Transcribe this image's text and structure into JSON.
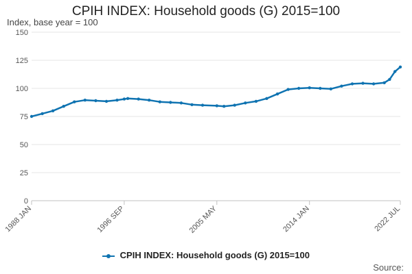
{
  "page": {
    "title": "CPIH INDEX: Household goods (G) 2015=100",
    "source_label": "Source:"
  },
  "colors": {
    "series": "#0f73b1",
    "grid": "#e6e6e6",
    "axis": "#c0c0c0"
  },
  "chart_data": {
    "type": "line",
    "title": "CPIH INDEX: Household goods (G) 2015=100",
    "ylabel": "Index, base year = 100",
    "xlabel": "",
    "ylim": [
      0,
      150
    ],
    "yticks": [
      0,
      25,
      50,
      75,
      100,
      125,
      150
    ],
    "xticks": [
      "1988 JAN",
      "1996 SEP",
      "2005 MAY",
      "2014 JAN",
      "2022 JUL"
    ],
    "grid": true,
    "legend_position": "bottom",
    "series": [
      {
        "name": "CPIH INDEX: Household goods (G) 2015=100",
        "x": [
          "1988 JAN",
          "1989 JAN",
          "1990 JAN",
          "1991 JAN",
          "1992 JAN",
          "1993 JAN",
          "1994 JAN",
          "1995 JAN",
          "1996 JAN",
          "1996 SEP",
          "1997 JAN",
          "1998 JAN",
          "1999 JAN",
          "2000 JAN",
          "2001 JAN",
          "2002 JAN",
          "2003 JAN",
          "2004 JAN",
          "2005 MAY",
          "2006 JAN",
          "2007 JAN",
          "2008 JAN",
          "2009 JAN",
          "2010 JAN",
          "2011 JAN",
          "2012 JAN",
          "2013 JAN",
          "2014 JAN",
          "2015 JAN",
          "2016 JAN",
          "2017 JAN",
          "2018 JAN",
          "2019 JAN",
          "2020 JAN",
          "2021 JAN",
          "2021 JUL",
          "2022 JAN",
          "2022 JUL"
        ],
        "values": [
          75.0,
          77.5,
          80.0,
          84.0,
          88.0,
          89.5,
          89.0,
          88.5,
          89.5,
          90.5,
          91.0,
          90.5,
          89.5,
          88.0,
          87.5,
          87.0,
          85.5,
          85.0,
          84.5,
          84.0,
          85.0,
          87.0,
          88.5,
          91.0,
          95.0,
          99.0,
          100.0,
          100.5,
          100.0,
          99.5,
          102.0,
          104.0,
          104.5,
          104.0,
          105.0,
          108.0,
          115.0,
          119.0
        ]
      }
    ]
  }
}
